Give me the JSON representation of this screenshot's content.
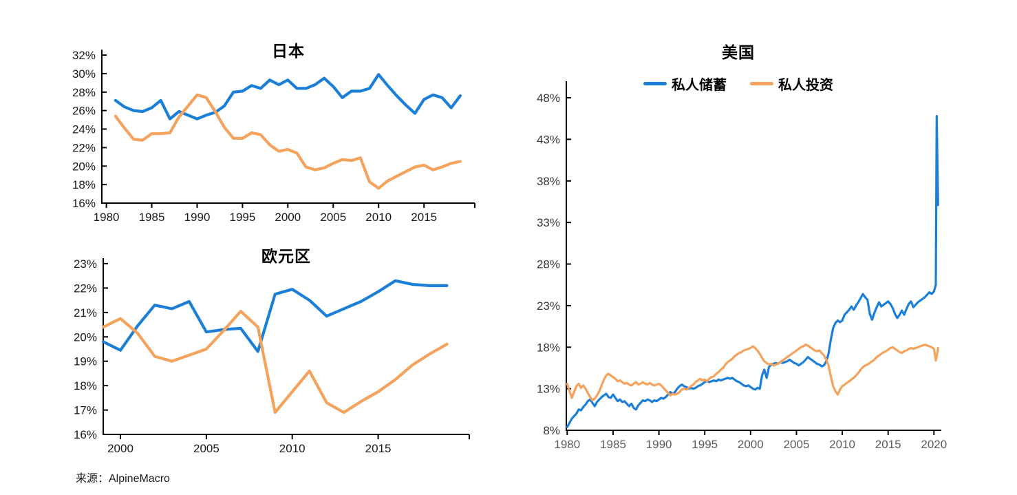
{
  "page": {
    "source_label": "来源：AlpineMacro"
  },
  "colors": {
    "savings": "#1b7fd8",
    "investment": "#f5a25d",
    "axis": "#000000"
  },
  "chart_data": [
    {
      "id": "japan",
      "type": "line",
      "title": "日本",
      "legend_position": "none",
      "grid": false,
      "x_axis": {
        "min": 1979.5,
        "max": 2020.6,
        "ticks": [
          1980,
          1985,
          1990,
          1995,
          2000,
          2005,
          2010,
          2015
        ],
        "tick_labels": [
          "1980",
          "1985",
          "1990",
          "1995",
          "2000",
          "2005",
          "2010",
          "2015"
        ],
        "end_tick": true,
        "label_color": "#1a1a1a"
      },
      "y_axis": {
        "min": 16,
        "max": 32,
        "ticks": [
          32,
          30,
          28,
          26,
          24,
          22,
          20,
          18,
          16
        ],
        "tick_labels": [
          "32%",
          "30%",
          "28%",
          "26%",
          "24%",
          "22%",
          "20%",
          "18%",
          "16%"
        ],
        "label_color": "#1a1a1a"
      },
      "series": [
        {
          "name": "私人储蓄",
          "color": "savings",
          "x_start": 1981,
          "x_step": 1,
          "values": [
            27.1,
            26.4,
            26.0,
            25.9,
            26.3,
            27.1,
            25.1,
            25.9,
            25.5,
            25.1,
            25.5,
            25.8,
            26.5,
            28.0,
            28.1,
            28.7,
            28.4,
            29.3,
            28.8,
            29.3,
            28.4,
            28.4,
            28.8,
            29.5,
            28.6,
            27.4,
            28.1,
            28.1,
            28.4,
            29.9,
            28.7,
            27.6,
            26.6,
            25.7,
            27.2,
            27.7,
            27.4,
            26.3,
            27.6
          ]
        },
        {
          "name": "私人投资",
          "color": "investment",
          "x_start": 1981,
          "x_step": 1,
          "values": [
            25.4,
            24.1,
            22.9,
            22.8,
            23.5,
            23.5,
            23.6,
            25.3,
            26.5,
            27.7,
            27.4,
            25.9,
            24.2,
            23.0,
            23.0,
            23.6,
            23.4,
            22.3,
            21.6,
            21.8,
            21.4,
            19.9,
            19.6,
            19.8,
            20.3,
            20.7,
            20.6,
            20.9,
            18.3,
            17.6,
            18.4,
            18.9,
            19.4,
            19.9,
            20.1,
            19.6,
            19.9,
            20.3,
            20.5
          ]
        }
      ]
    },
    {
      "id": "eurozone",
      "type": "line",
      "title": "欧元区",
      "legend_position": "none",
      "grid": false,
      "x_axis": {
        "min": 1999,
        "max": 2020.3,
        "ticks": [
          2000,
          2005,
          2010,
          2015
        ],
        "tick_labels": [
          "2000",
          "2005",
          "2010",
          "2015"
        ],
        "end_tick": true,
        "label_color": "#1a1a1a"
      },
      "y_axis": {
        "min": 16,
        "max": 23,
        "ticks": [
          23,
          22,
          21,
          20,
          19,
          18,
          17,
          16
        ],
        "tick_labels": [
          "23%",
          "22%",
          "21%",
          "20%",
          "19%",
          "18%",
          "17%",
          "16%"
        ],
        "label_color": "#1a1a1a"
      },
      "series": [
        {
          "name": "私人储蓄",
          "color": "savings",
          "x_start": 1999,
          "x_step": 1,
          "values": [
            19.8,
            19.45,
            20.45,
            21.3,
            21.15,
            21.45,
            20.2,
            20.3,
            20.35,
            19.4,
            21.75,
            21.95,
            21.5,
            20.85,
            21.15,
            21.45,
            21.85,
            22.3,
            22.15,
            22.1,
            22.1
          ]
        },
        {
          "name": "私人投资",
          "color": "investment",
          "x_start": 1999,
          "x_step": 1,
          "values": [
            20.4,
            20.75,
            20.15,
            19.2,
            19.0,
            19.25,
            19.5,
            20.25,
            21.05,
            20.4,
            16.9,
            17.75,
            18.6,
            17.3,
            16.9,
            17.35,
            17.75,
            18.25,
            18.85,
            19.3,
            19.7
          ]
        }
      ]
    },
    {
      "id": "us",
      "type": "line",
      "title": "美国",
      "legend_position": "top-center",
      "grid": false,
      "x_axis": {
        "min": 1979.9,
        "max": 2020.8,
        "ticks": [
          1980,
          1985,
          1990,
          1995,
          2000,
          2005,
          2010,
          2015,
          2020
        ],
        "tick_labels": [
          "1980",
          "1985",
          "1990",
          "1995",
          "2000",
          "2005",
          "2010",
          "2015",
          "2020"
        ],
        "end_tick": false,
        "label_color": "#5a5a5a"
      },
      "y_axis": {
        "min": 8,
        "max": 48,
        "ticks": [
          48,
          43,
          38,
          33,
          28,
          23,
          18,
          13,
          8
        ],
        "tick_labels": [
          "48%",
          "43%",
          "38%",
          "33%",
          "28%",
          "23%",
          "18%",
          "13%",
          "8%"
        ],
        "label_color": "#363636"
      },
      "series": [
        {
          "name": "私人储蓄",
          "color": "savings",
          "x_start": 1980,
          "x_step": 0.25,
          "values": [
            8.4,
            8.9,
            9.4,
            9.7,
            10.0,
            10.5,
            10.4,
            10.8,
            11.1,
            11.5,
            11.7,
            11.3,
            10.9,
            11.4,
            11.7,
            12.0,
            12.2,
            12.4,
            12.0,
            11.9,
            12.3,
            11.9,
            11.5,
            11.7,
            11.4,
            11.5,
            11.2,
            10.9,
            11.2,
            10.7,
            10.5,
            11.0,
            11.3,
            11.6,
            11.5,
            11.7,
            11.6,
            11.4,
            11.6,
            11.5,
            11.7,
            11.9,
            11.8,
            12.0,
            12.3,
            12.6,
            12.4,
            12.6,
            13.0,
            13.3,
            13.5,
            13.3,
            13.2,
            13.0,
            13.1,
            13.0,
            13.1,
            13.3,
            13.4,
            13.6,
            13.8,
            13.9,
            13.8,
            13.9,
            14.0,
            13.9,
            14.1,
            14.0,
            14.1,
            14.2,
            14.3,
            14.2,
            14.3,
            14.1,
            13.9,
            13.8,
            13.6,
            13.4,
            13.3,
            13.4,
            13.2,
            13.0,
            12.9,
            13.1,
            13.0,
            14.6,
            15.3,
            14.3,
            15.6,
            15.9,
            16.0,
            16.1,
            16.0,
            16.2,
            16.1,
            16.2,
            16.3,
            16.5,
            16.3,
            16.1,
            16.0,
            15.8,
            16.0,
            16.2,
            16.5,
            16.8,
            16.6,
            16.4,
            16.2,
            16.0,
            15.9,
            15.7,
            15.8,
            16.3,
            17.2,
            18.9,
            20.3,
            20.9,
            21.2,
            21.0,
            21.2,
            21.9,
            22.2,
            22.5,
            22.9,
            22.5,
            23.0,
            23.4,
            23.9,
            24.4,
            24.0,
            23.7,
            22.0,
            21.3,
            22.1,
            22.8,
            23.4,
            22.9,
            23.1,
            23.3,
            23.5,
            23.2,
            22.7,
            22.0,
            21.5,
            21.9,
            22.4,
            21.9,
            22.6,
            23.2,
            23.5,
            22.8,
            23.1,
            23.4,
            23.6,
            23.8,
            24.0,
            24.3,
            24.6,
            24.4,
            24.7
          ],
          "extra": [
            [
              2020.2,
              25.5
            ],
            [
              2020.3,
              45.8
            ],
            [
              2020.45,
              35.1
            ]
          ]
        },
        {
          "name": "私人投资",
          "color": "investment",
          "x_start": 1980,
          "x_step": 0.25,
          "values": [
            13.6,
            12.7,
            11.9,
            12.6,
            13.3,
            13.6,
            13.1,
            13.4,
            13.0,
            12.5,
            12.0,
            11.6,
            11.8,
            12.2,
            12.7,
            13.4,
            14.1,
            14.6,
            14.8,
            14.6,
            14.4,
            14.2,
            13.9,
            14.0,
            13.8,
            13.6,
            13.7,
            13.5,
            13.4,
            13.6,
            13.8,
            13.5,
            13.6,
            13.8,
            13.6,
            13.5,
            13.7,
            13.5,
            13.4,
            13.5,
            13.6,
            13.4,
            13.1,
            12.8,
            12.5,
            12.2,
            12.4,
            12.3,
            12.4,
            12.6,
            12.9,
            13.0,
            12.9,
            13.1,
            13.3,
            13.5,
            13.8,
            14.0,
            14.2,
            14.0,
            14.1,
            13.9,
            14.2,
            14.4,
            14.5,
            14.8,
            15.0,
            15.3,
            15.5,
            15.9,
            16.2,
            16.4,
            16.6,
            16.9,
            17.1,
            17.3,
            17.4,
            17.6,
            17.7,
            17.8,
            17.9,
            18.1,
            17.9,
            17.6,
            17.2,
            16.7,
            16.3,
            16.1,
            15.9,
            16.0,
            15.8,
            15.9,
            16.0,
            16.2,
            16.4,
            16.6,
            16.8,
            17.0,
            17.2,
            17.4,
            17.6,
            17.8,
            18.0,
            18.1,
            18.3,
            18.2,
            18.0,
            17.8,
            17.6,
            17.5,
            17.6,
            17.3,
            17.0,
            16.5,
            15.8,
            14.5,
            13.3,
            12.7,
            12.3,
            12.9,
            13.3,
            13.5,
            13.7,
            13.9,
            14.1,
            14.3,
            14.6,
            14.9,
            15.3,
            15.6,
            15.8,
            15.9,
            16.1,
            16.3,
            16.5,
            16.8,
            17.0,
            17.2,
            17.4,
            17.5,
            17.7,
            17.9,
            18.0,
            17.8,
            17.6,
            17.4,
            17.3,
            17.5,
            17.6,
            17.8,
            17.9,
            17.8,
            17.9,
            18.0,
            18.1,
            18.2,
            18.3,
            18.2,
            18.1,
            18.0,
            17.8
          ],
          "extra": [
            [
              2020.2,
              16.4
            ],
            [
              2020.35,
              17.2
            ],
            [
              2020.45,
              17.9
            ]
          ]
        }
      ]
    }
  ]
}
